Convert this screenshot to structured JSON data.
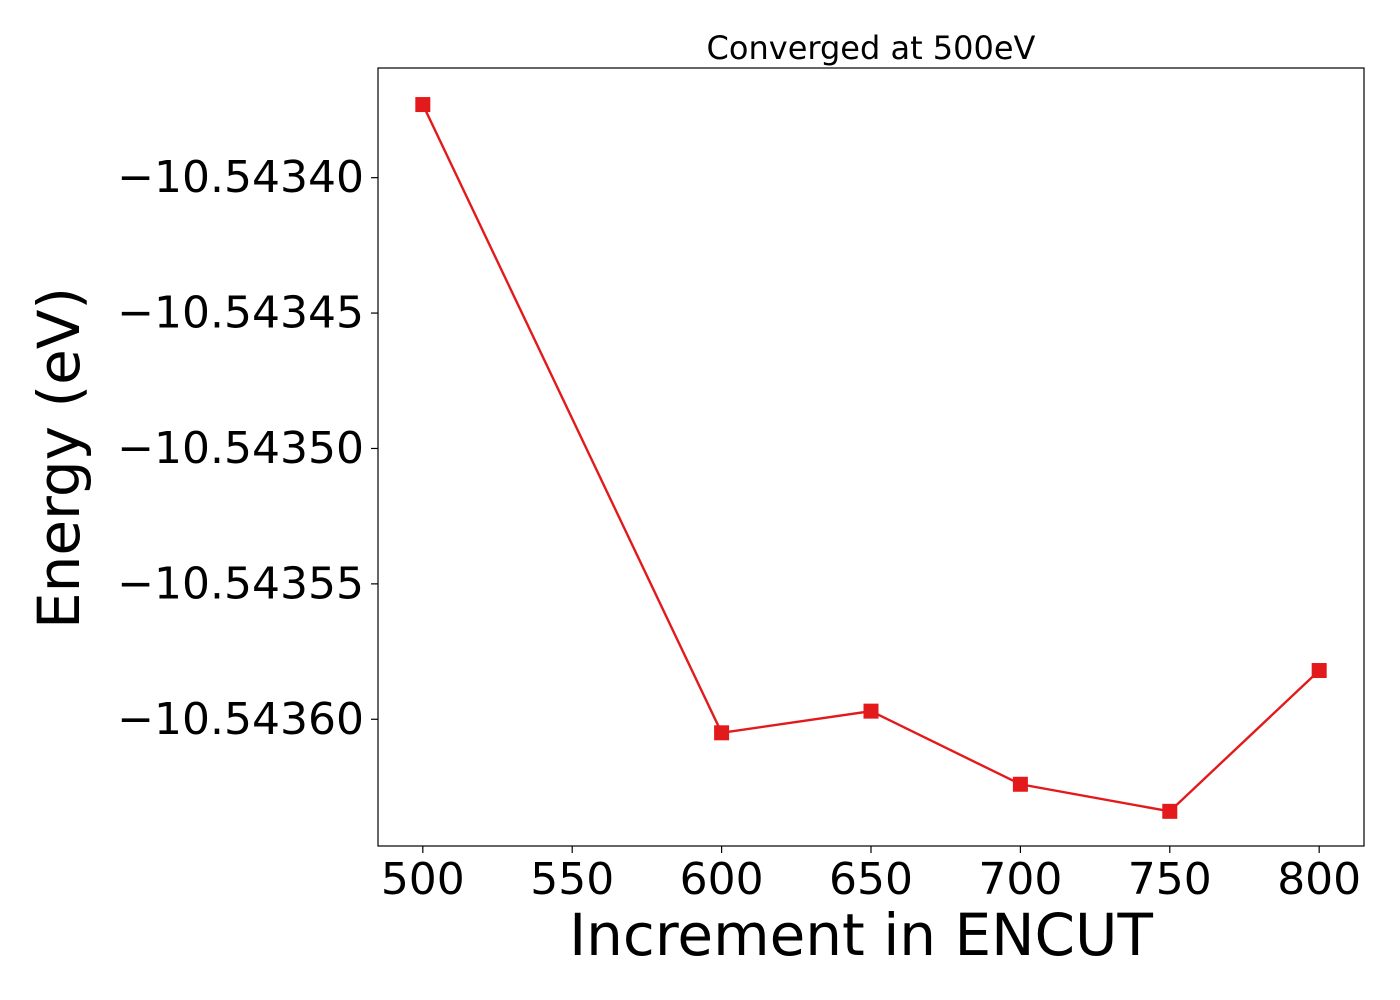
{
  "chart_data": {
    "type": "line",
    "title": "Converged at 500eV",
    "xlabel": "Increment in ENCUT",
    "ylabel": "Energy (eV)",
    "x": [
      500,
      600,
      650,
      700,
      750,
      800
    ],
    "series": [
      {
        "values": [
          -10.543373,
          -10.543605,
          -10.543597,
          -10.543624,
          -10.543634,
          -10.543582
        ],
        "color": "#e31a1c",
        "marker": "square"
      }
    ],
    "xticks": [
      500,
      550,
      600,
      650,
      700,
      750,
      800
    ],
    "xtick_labels": [
      "500",
      "550",
      "600",
      "650",
      "700",
      "750",
      "800"
    ],
    "yticks": [
      -10.5434,
      -10.54345,
      -10.5435,
      -10.54355,
      -10.5436
    ],
    "ytick_labels": [
      "−10.54340",
      "−10.54345",
      "−10.54350",
      "−10.54355",
      "−10.54360"
    ],
    "xlim": [
      485,
      815
    ],
    "ylim": [
      -10.5436468,
      -10.5433595
    ],
    "grid": false,
    "legend": "none"
  }
}
